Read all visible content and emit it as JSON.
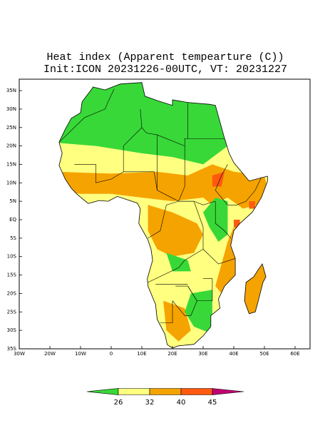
{
  "title": [
    "Heat index (Apparent tempearture (C))",
    "Init:ICON 20231226-00UTC, VT: 20231227"
  ],
  "map": {
    "lat_labels": [
      "35N",
      "30N",
      "25N",
      "20N",
      "15N",
      "10N",
      "5N",
      "EQ",
      "5S",
      "10S",
      "15S",
      "20S",
      "25S",
      "30S",
      "35S"
    ],
    "lon_labels": [
      "30W",
      "20W",
      "10W",
      "0",
      "10E",
      "20E",
      "30E",
      "40E",
      "50E",
      "60E"
    ]
  },
  "colorbar": {
    "levels": [
      26,
      32,
      40,
      45
    ],
    "colors": [
      "#38d838",
      "#ffff80",
      "#f5a300",
      "#ff5a10",
      "#c00070"
    ]
  }
}
